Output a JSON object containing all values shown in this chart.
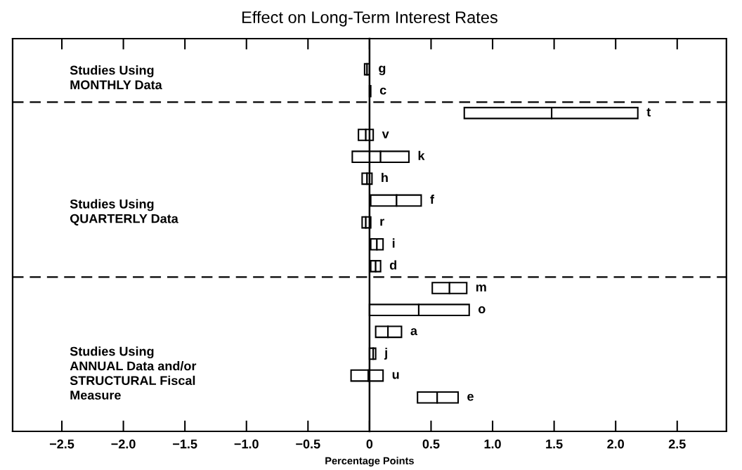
{
  "chart_data": {
    "type": "bar",
    "orientation": "horizontal",
    "title": "Effect on Long-Term Interest Rates",
    "xlabel": "Percentage Points",
    "categories": [
      "g",
      "c",
      "t",
      "v",
      "k",
      "h",
      "f",
      "r",
      "i",
      "d",
      "m",
      "o",
      "a",
      "j",
      "u",
      "e"
    ],
    "series": [
      {
        "color": "#ffffff",
        "base": [
          -0.04,
          0.0,
          0.77,
          -0.09,
          -0.14,
          -0.06,
          0.01,
          -0.06,
          0.01,
          0.01,
          0.51,
          0.0,
          0.05,
          0.0,
          -0.15,
          0.39
        ],
        "values": [
          0.02,
          0.01,
          0.71,
          0.06,
          0.23,
          0.04,
          0.21,
          0.03,
          0.05,
          0.04,
          0.14,
          0.4,
          0.1,
          0.03,
          0.14,
          0.16
        ]
      },
      {
        "color": "#ffffff",
        "base": [
          -0.02,
          null,
          1.48,
          -0.03,
          0.09,
          -0.02,
          0.22,
          -0.03,
          0.06,
          0.05,
          0.65,
          0.4,
          0.15,
          0.03,
          -0.01,
          0.55
        ],
        "values": [
          0.02,
          null,
          0.7,
          0.06,
          0.23,
          0.04,
          0.2,
          0.04,
          0.05,
          0.04,
          0.14,
          0.41,
          0.11,
          0.02,
          0.12,
          0.17
        ]
      }
    ],
    "xlim": [
      -2.9,
      2.9
    ],
    "xticks": [
      {
        "value": -2.5,
        "label": "−2.5"
      },
      {
        "value": -2,
        "label": "−2.0"
      },
      {
        "value": -1.5,
        "label": "−1.5"
      },
      {
        "value": -1,
        "label": "−1.0"
      },
      {
        "value": -0.5,
        "label": "−0.5"
      },
      0,
      0.5,
      {
        "value": 1,
        "label": "1.0"
      },
      1.5,
      {
        "value": 2,
        "label": "2.0"
      },
      2.5
    ],
    "annotations": [
      "Studies Using\nMONTHLY Data",
      "Studies Using\nQUARTERLY Data",
      "Studies Using\nANNUAL Data and/or\nSTRUCTURAL Fiscal\nMeasure"
    ]
  }
}
